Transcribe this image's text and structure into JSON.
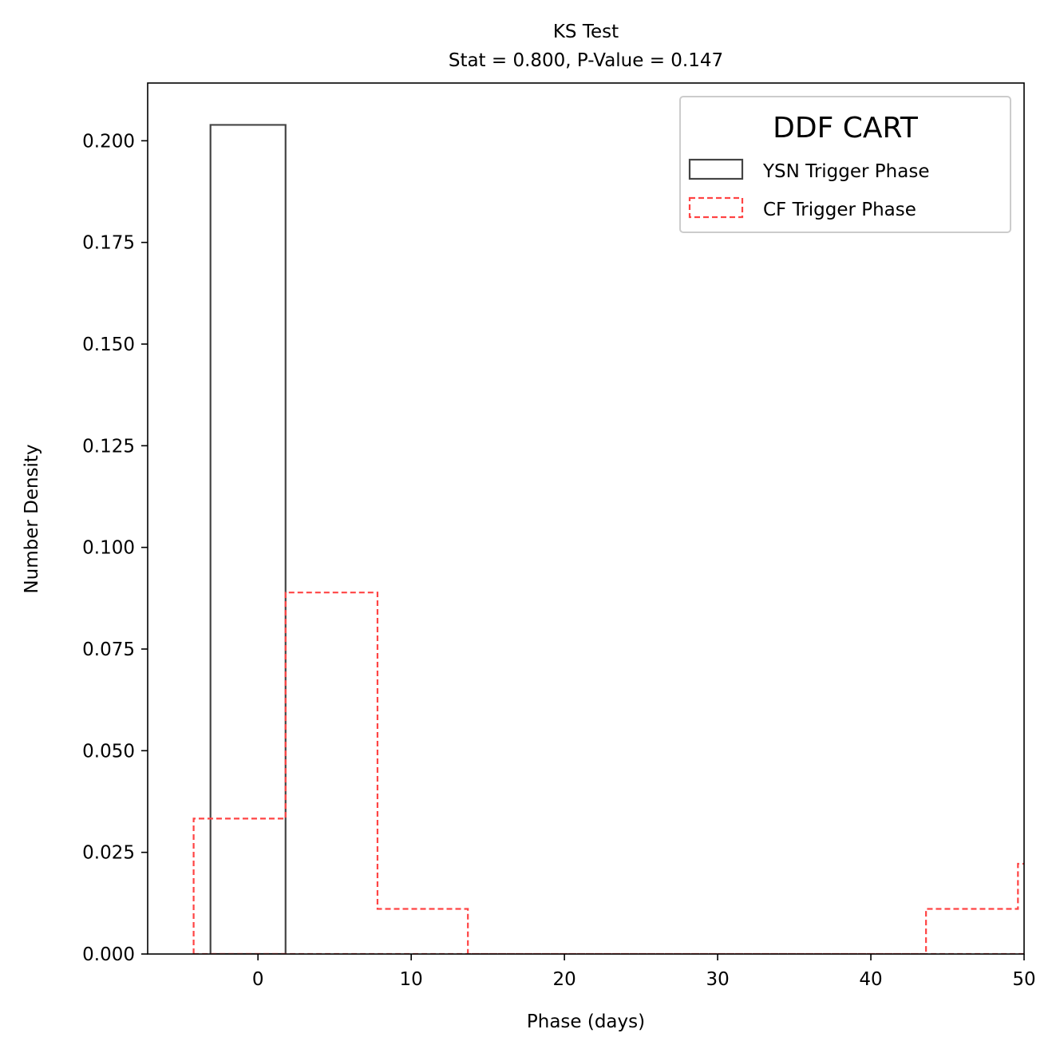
{
  "chart_data": {
    "type": "histogram",
    "title": "KS Test",
    "subtitle": "Stat = 0.800, P-Value = 0.147",
    "xlabel": "Phase (days)",
    "ylabel": "Number Density",
    "xlim": [
      -7.2,
      50
    ],
    "ylim": [
      0,
      0.2142
    ],
    "xticks": [
      "0",
      "10",
      "20",
      "30",
      "40",
      "50"
    ],
    "xtick_values": [
      0,
      10,
      20,
      30,
      40,
      50
    ],
    "yticks": [
      "0.000",
      "0.025",
      "0.050",
      "0.075",
      "0.100",
      "0.125",
      "0.150",
      "0.175",
      "0.200"
    ],
    "ytick_values": [
      0,
      0.025,
      0.05,
      0.075,
      0.1,
      0.125,
      0.15,
      0.175,
      0.2
    ],
    "grid": false,
    "legend": {
      "title": "DDF CART",
      "placement": "top-right",
      "entries": [
        "YSN Trigger Phase",
        "CF Trigger Phase"
      ]
    },
    "series": [
      {
        "name": "YSN Trigger Phase",
        "style": "solid",
        "color": "#444444",
        "bin_edges": [
          -3.1,
          1.8
        ],
        "values": [
          0.2039
        ]
      },
      {
        "name": "CF Trigger Phase",
        "style": "dashed",
        "color": "#ff4444",
        "bin_edges": [
          -4.2,
          1.8,
          7.8,
          13.7,
          19.7,
          25.7,
          31.7,
          37.6,
          43.6,
          49.6,
          55.6
        ],
        "values": [
          0.0333,
          0.0889,
          0.0111,
          0.0,
          0.0,
          0.0,
          0.0,
          0.0,
          0.0111,
          0.0222
        ]
      }
    ]
  }
}
